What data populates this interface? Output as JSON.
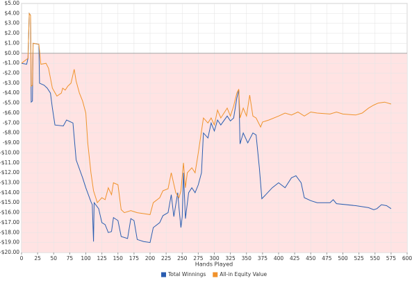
{
  "chart_data": {
    "type": "line",
    "x_label": "Hands Played",
    "negative_fill": "#ffe3e3",
    "grid": true,
    "legend": "bottom",
    "xlim": [
      0,
      600
    ],
    "xticks": [
      0,
      25,
      50,
      75,
      100,
      125,
      150,
      175,
      200,
      225,
      250,
      275,
      300,
      325,
      350,
      375,
      400,
      425,
      450,
      475,
      500,
      525,
      550,
      575,
      600
    ],
    "ylim": [
      -20,
      5
    ],
    "yticks": [
      {
        "value": 5,
        "label": "$5.00"
      },
      {
        "value": 4,
        "label": "$4.00"
      },
      {
        "value": 3,
        "label": "$3.00"
      },
      {
        "value": 2,
        "label": "$2.00"
      },
      {
        "value": 1,
        "label": "$1.00"
      },
      {
        "value": 0,
        "label": "$0.00"
      },
      {
        "value": -1,
        "label": "-$1.00"
      },
      {
        "value": -2,
        "label": "-$2.00"
      },
      {
        "value": -3,
        "label": "-$3.00"
      },
      {
        "value": -4,
        "label": "-$4.00"
      },
      {
        "value": -5,
        "label": "-$5.00"
      },
      {
        "value": -6,
        "label": "-$6.00"
      },
      {
        "value": -7,
        "label": "-$7.00"
      },
      {
        "value": -8,
        "label": "-$8.00"
      },
      {
        "value": -9,
        "label": "-$9.00"
      },
      {
        "value": -10,
        "label": "-$10.00"
      },
      {
        "value": -11,
        "label": "-$11.00"
      },
      {
        "value": -12,
        "label": "-$12.00"
      },
      {
        "value": -13,
        "label": "-$13.00"
      },
      {
        "value": -14,
        "label": "-$14.00"
      },
      {
        "value": -15,
        "label": "-$15.00"
      },
      {
        "value": -16,
        "label": "-$16.00"
      },
      {
        "value": -17,
        "label": "-$17.00"
      },
      {
        "value": -18,
        "label": "-$18.00"
      },
      {
        "value": -19,
        "label": "-$19.00"
      },
      {
        "value": -20,
        "label": "-$20.00"
      }
    ],
    "series": [
      {
        "name": "Total Winnings",
        "color": "#2a5db0",
        "x": [
          0,
          8,
          10,
          12,
          14,
          15,
          17,
          18,
          27,
          28,
          35,
          40,
          45,
          48,
          52,
          65,
          70,
          80,
          85,
          95,
          100,
          108,
          110,
          112,
          113,
          120,
          125,
          130,
          135,
          140,
          143,
          150,
          155,
          165,
          170,
          175,
          180,
          190,
          200,
          205,
          215,
          220,
          228,
          233,
          237,
          243,
          245,
          248,
          250,
          252,
          255,
          260,
          265,
          270,
          275,
          280,
          283,
          290,
          295,
          300,
          305,
          310,
          320,
          325,
          330,
          335,
          338,
          340,
          345,
          352,
          360,
          365,
          370,
          374,
          380,
          390,
          400,
          410,
          420,
          427,
          435,
          440,
          450,
          460,
          480,
          485,
          490,
          520,
          540,
          548,
          553,
          560,
          568,
          575
        ],
        "values": [
          -1.0,
          -1.1,
          -0.5,
          4.0,
          3.8,
          -4.9,
          -4.8,
          1.0,
          0.9,
          -3.0,
          -3.2,
          -3.5,
          -4.0,
          -5.5,
          -7.2,
          -7.3,
          -6.7,
          -7.0,
          -10.7,
          -12.5,
          -13.5,
          -14.9,
          -15.2,
          -18.9,
          -15.0,
          -15.6,
          -17.0,
          -17.2,
          -18.0,
          -17.9,
          -16.5,
          -16.8,
          -18.4,
          -18.6,
          -16.6,
          -16.8,
          -18.7,
          -18.9,
          -19.0,
          -17.5,
          -17.0,
          -16.3,
          -16.0,
          -14.2,
          -16.4,
          -14.0,
          -15.5,
          -17.5,
          -16.4,
          -12.0,
          -16.6,
          -14.0,
          -13.5,
          -14.0,
          -13.2,
          -12.0,
          -8.0,
          -8.5,
          -7.0,
          -7.8,
          -6.7,
          -7.2,
          -6.3,
          -6.8,
          -6.5,
          -4.5,
          -3.7,
          -9.1,
          -8.0,
          -9.0,
          -8.0,
          -8.2,
          -11.5,
          -14.6,
          -14.2,
          -13.5,
          -13.0,
          -13.5,
          -12.5,
          -12.3,
          -13.0,
          -14.5,
          -14.8,
          -15.0,
          -15.0,
          -14.7,
          -15.1,
          -15.3,
          -15.5,
          -15.7,
          -15.6,
          -15.2,
          -15.3,
          -15.6
        ]
      },
      {
        "name": "All-in Equity Value",
        "color": "#f0922b",
        "x": [
          0,
          10,
          12,
          14,
          15,
          17,
          18,
          27,
          30,
          38,
          42,
          45,
          48,
          55,
          62,
          64,
          68,
          72,
          77,
          82,
          85,
          90,
          95,
          100,
          103,
          108,
          112,
          118,
          125,
          130,
          135,
          140,
          143,
          150,
          155,
          160,
          170,
          180,
          190,
          200,
          205,
          215,
          220,
          228,
          233,
          240,
          245,
          248,
          252,
          255,
          258,
          265,
          270,
          275,
          283,
          290,
          295,
          300,
          305,
          310,
          320,
          325,
          330,
          335,
          338,
          340,
          345,
          350,
          355,
          360,
          365,
          372,
          375,
          385,
          400,
          410,
          420,
          430,
          440,
          450,
          460,
          480,
          490,
          500,
          520,
          530,
          540,
          548,
          555,
          565,
          575
        ],
        "values": [
          -1.0,
          -0.5,
          4.0,
          3.8,
          -3.3,
          -3.2,
          1.0,
          0.9,
          -1.1,
          -1.0,
          -1.5,
          -2.5,
          -3.5,
          -4.3,
          -4.0,
          -3.5,
          -3.7,
          -3.3,
          -3.0,
          -1.6,
          -2.8,
          -4.0,
          -4.8,
          -6.0,
          -9.0,
          -12.0,
          -13.8,
          -15.0,
          -14.5,
          -14.7,
          -13.5,
          -14.2,
          -13.0,
          -13.2,
          -15.7,
          -16.0,
          -15.8,
          -16.0,
          -16.1,
          -16.2,
          -15.0,
          -14.5,
          -13.8,
          -13.6,
          -12.0,
          -14.0,
          -14.5,
          -13.8,
          -11.0,
          -13.5,
          -12.0,
          -11.5,
          -12.0,
          -10.0,
          -6.5,
          -7.0,
          -6.5,
          -7.2,
          -5.7,
          -6.5,
          -5.5,
          -6.3,
          -5.3,
          -4.0,
          -3.6,
          -6.5,
          -5.5,
          -6.3,
          -4.2,
          -6.3,
          -6.5,
          -7.4,
          -6.9,
          -6.7,
          -6.3,
          -6.0,
          -6.2,
          -5.9,
          -6.3,
          -5.9,
          -6.0,
          -6.1,
          -5.9,
          -6.1,
          -6.2,
          -6.0,
          -5.5,
          -5.2,
          -5.0,
          -4.9,
          -5.1
        ]
      }
    ]
  }
}
